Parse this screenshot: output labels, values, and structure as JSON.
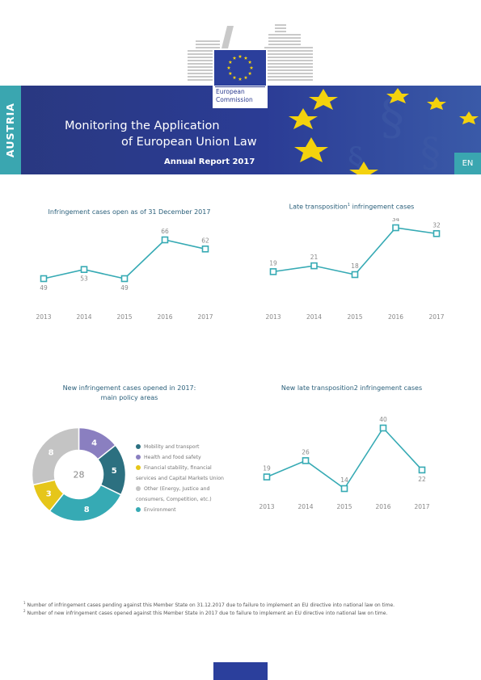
{
  "header": {
    "country": "AUSTRIA",
    "title_line1": "Monitoring the Application",
    "title_line2": "of European Union Law",
    "subtitle": "Annual Report 2017",
    "language": "EN",
    "logo_line1": "European",
    "logo_line2": "Commission"
  },
  "charts": {
    "open_cases": {
      "title": "Infringement cases open as of 31 December 2017",
      "chart_data": {
        "type": "line",
        "x": [
          "2013",
          "2014",
          "2015",
          "2016",
          "2017"
        ],
        "values": [
          49,
          53,
          49,
          66,
          62
        ]
      }
    },
    "late_transposition": {
      "title": "Late transposition",
      "title_sup": "1",
      "title_suffix": " infringement cases",
      "chart_data": {
        "type": "line",
        "x": [
          "2013",
          "2014",
          "2015",
          "2016",
          "2017"
        ],
        "values": [
          19,
          21,
          18,
          34,
          32
        ]
      }
    },
    "policy_areas": {
      "title_line1": "New infringement cases opened in 2017:",
      "title_line2": "main policy areas",
      "total": "28",
      "chart_data": {
        "type": "pie",
        "labels": [
          "Mobility and transport",
          "Health and food safety",
          "Financial stability, financial services and Capital Markets Union",
          "Other (Energy, Justice and consumers, Competition, etc.)",
          "Environment"
        ],
        "values": [
          5,
          4,
          3,
          8,
          8
        ]
      },
      "legend": [
        {
          "line1": "Mobility and transport",
          "line2": "",
          "color": "#2c7080"
        },
        {
          "line1": "Health and food safety",
          "line2": "",
          "color": "#8a7fc0"
        },
        {
          "line1": "Financial stability, financial",
          "line2": "services and Capital Markets Union",
          "color": "#e6c619"
        },
        {
          "line1": "Other (Energy, Justice and",
          "line2": "consumers, Competition, etc.)",
          "color": "#c4c4c4"
        },
        {
          "line1": "Environment",
          "line2": "",
          "color": "#36aab4"
        }
      ]
    },
    "new_late": {
      "title": "New late transposition2 infringement cases",
      "chart_data": {
        "type": "line",
        "x": [
          "2013",
          "2014",
          "2015",
          "2016",
          "2017"
        ],
        "values": [
          19,
          26,
          14,
          40,
          22
        ]
      }
    }
  },
  "footnotes": {
    "note1_sup": "1",
    "note1": " Number of infringement cases pending against this Member State on 31.12.2017 due to failure to implement an EU directive into national law on time.",
    "note2_sup": "2",
    "note2": " Number of new infringement cases opened against this Member State in 2017 due to failure to implement an EU directive into national law on time."
  },
  "colors": {
    "navy": "#2a3a8f",
    "teal": "#3aa6b0",
    "line": "#36aab4"
  }
}
